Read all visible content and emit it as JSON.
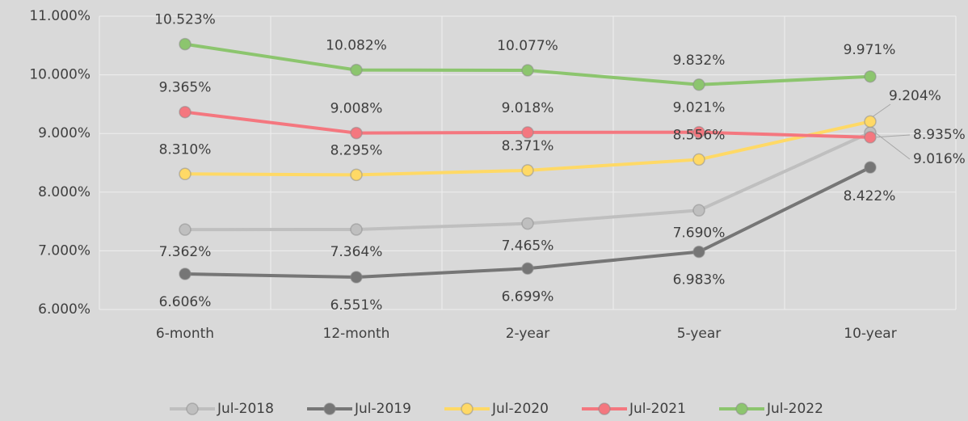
{
  "chart_data": {
    "type": "line",
    "categories": [
      "6-month",
      "12-month",
      "2-year",
      "5-year",
      "10-year"
    ],
    "series": [
      {
        "name": "Jul-2018",
        "color": "#bfbfbf",
        "values": [
          7.362,
          7.364,
          7.465,
          7.69,
          9.016
        ],
        "value_labels": [
          "7.362%",
          "7.364%",
          "7.465%",
          "7.690%",
          "9.016%"
        ]
      },
      {
        "name": "Jul-2019",
        "color": "#767676",
        "values": [
          6.606,
          6.551,
          6.699,
          6.983,
          8.422
        ],
        "value_labels": [
          "6.606%",
          "6.551%",
          "6.699%",
          "6.983%",
          "8.422%"
        ]
      },
      {
        "name": "Jul-2020",
        "color": "#ffd966",
        "values": [
          8.31,
          8.295,
          8.371,
          8.556,
          9.204
        ],
        "value_labels": [
          "8.310%",
          "8.295%",
          "8.371%",
          "8.556%",
          "9.204%"
        ]
      },
      {
        "name": "Jul-2021",
        "color": "#f4777f",
        "values": [
          9.365,
          9.008,
          9.018,
          9.021,
          8.935
        ],
        "value_labels": [
          "9.365%",
          "9.008%",
          "9.018%",
          "9.021%",
          "8.935%"
        ]
      },
      {
        "name": "Jul-2022",
        "color": "#8cc56e",
        "values": [
          10.523,
          10.082,
          10.077,
          9.832,
          9.971
        ],
        "value_labels": [
          "10.523%",
          "10.082%",
          "10.077%",
          "9.832%",
          "9.971%"
        ]
      }
    ],
    "ylim": [
      6,
      11
    ],
    "yticks": [
      {
        "value": 6,
        "label": "6.000%"
      },
      {
        "value": 7,
        "label": "7.000%"
      },
      {
        "value": 8,
        "label": "8.000%"
      },
      {
        "value": 9,
        "label": "9.000%"
      },
      {
        "value": 10,
        "label": "10.000%"
      },
      {
        "value": 11,
        "label": "11.000%"
      }
    ],
    "grid": true,
    "legend": "bottom"
  }
}
